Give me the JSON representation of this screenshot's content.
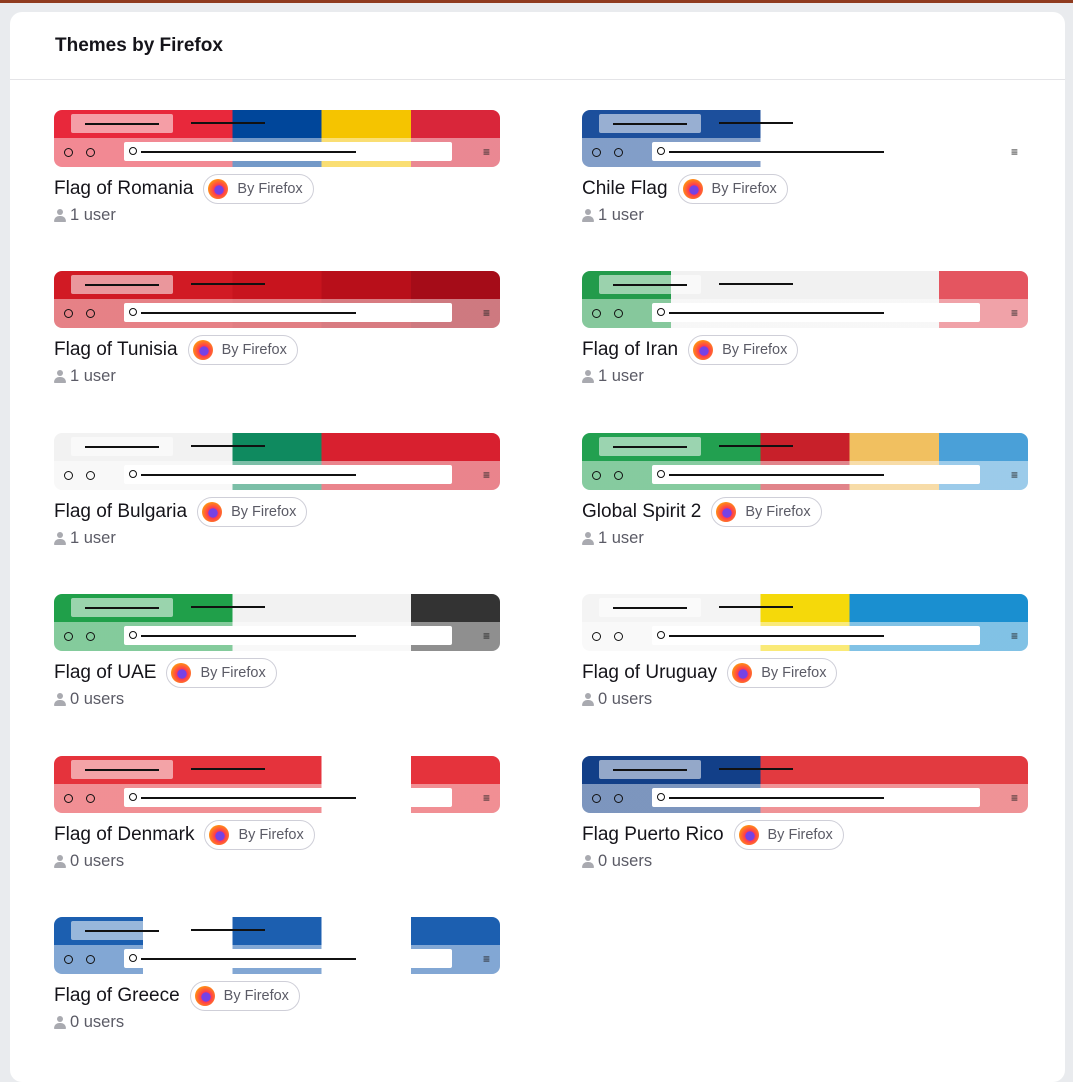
{
  "header": {
    "title": "Themes by Firefox"
  },
  "badge_label": "By Firefox",
  "badge_icon": "firefox-logo-icon",
  "user_icon": "user-icon",
  "themes": [
    {
      "name": "Flag of Romania",
      "users": "1 user",
      "colors": [
        "#e8283b",
        "#e8283b",
        "#00469a",
        "#f5c400",
        "#d9263a"
      ]
    },
    {
      "name": "Chile Flag",
      "users": "1 user",
      "colors": [
        "#1c4f9c",
        "#1c4f9c",
        "#ffffff",
        "#ffffff",
        "#ffffff"
      ]
    },
    {
      "name": "Flag of Tunisia",
      "users": "1 user",
      "colors": [
        "#d11a24",
        "#d11a24",
        "#c8141e",
        "#b80f1a",
        "#a50c18"
      ]
    },
    {
      "name": "Flag of Iran",
      "users": "1 user",
      "colors": [
        "#239b4b",
        "#f1f1f1",
        "#f1f1f1",
        "#f1f1f1",
        "#e45560"
      ]
    },
    {
      "name": "Flag of Bulgaria",
      "users": "1 user",
      "colors": [
        "#f2f2f2",
        "#f2f2f2",
        "#0f8a5f",
        "#d8202f",
        "#d8202f"
      ]
    },
    {
      "name": "Global Spirit 2",
      "users": "1 user",
      "colors": [
        "#22a050",
        "#22a050",
        "#c8202a",
        "#f1c060",
        "#4aa0d8"
      ]
    },
    {
      "name": "Flag of UAE",
      "users": "0 users",
      "colors": [
        "#20a04a",
        "#20a04a",
        "#f2f2f2",
        "#f2f2f2",
        "#333333"
      ]
    },
    {
      "name": "Flag of Uruguay",
      "users": "0 users",
      "colors": [
        "#f4f4f4",
        "#f4f4f4",
        "#f5d90a",
        "#1a8fd0",
        "#1a8fd0"
      ]
    },
    {
      "name": "Flag of Denmark",
      "users": "0 users",
      "colors": [
        "#e5333c",
        "#e5333c",
        "#e5333c",
        "#ffffff",
        "#e5333c"
      ]
    },
    {
      "name": "Flag Puerto Rico",
      "users": "0 users",
      "colors": [
        "#123f88",
        "#123f88",
        "#e23a40",
        "#e23a40",
        "#e23a40"
      ]
    },
    {
      "name": "Flag of Greece",
      "users": "0 users",
      "colors": [
        "#1c5fb0",
        "#ffffff",
        "#1c5fb0",
        "#ffffff",
        "#1c5fb0"
      ]
    }
  ]
}
